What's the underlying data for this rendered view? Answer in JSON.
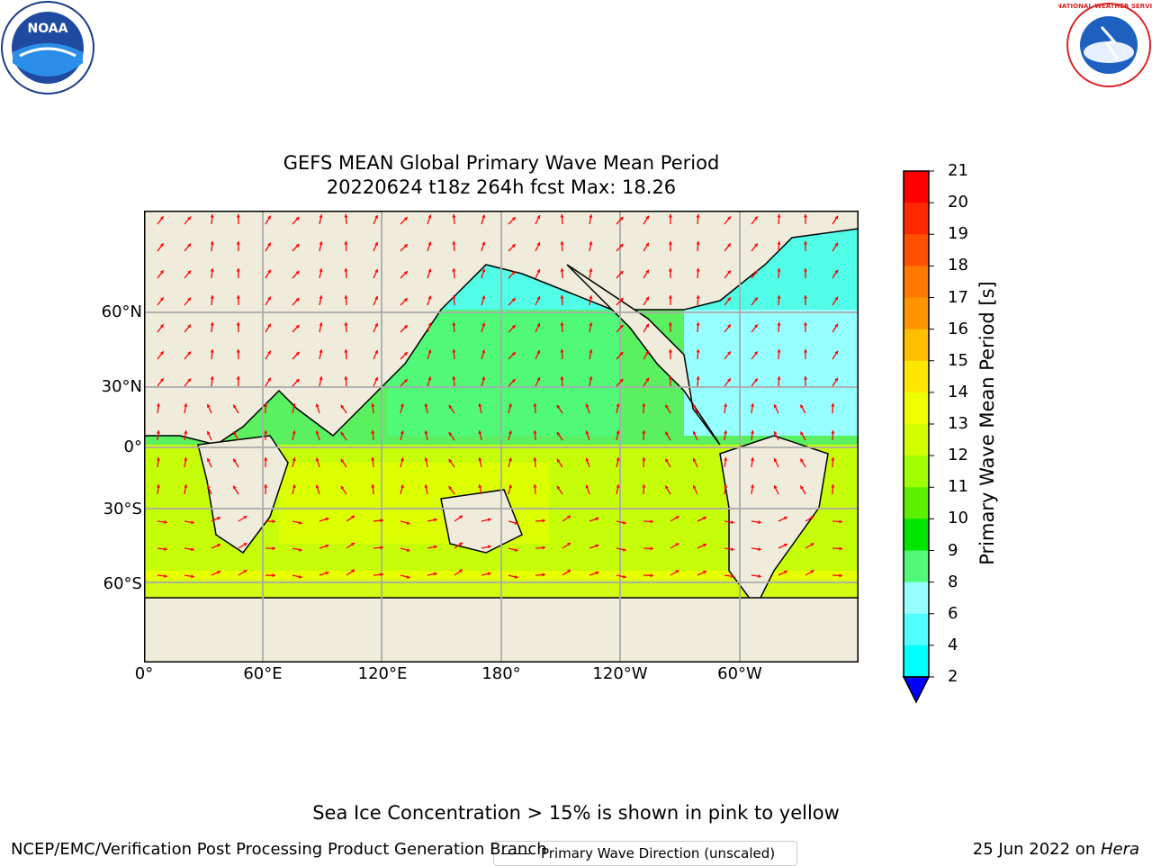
{
  "header": {
    "title_line1": "GEFS MEAN Global Primary Wave Mean Period",
    "title_line2": "20220624 t18z 264h fcst   Max: 18.26",
    "noaa_logo_text": "NOAA",
    "nws_logo_text": "NATIONAL WEATHER SERVICE"
  },
  "map": {
    "lat_labels": [
      "60°N",
      "30°N",
      "0°",
      "30°S",
      "60°S"
    ],
    "lon_labels": [
      "0°",
      "60°E",
      "120°E",
      "180°",
      "120°W",
      "60°W"
    ],
    "legend_label": "Primary Wave Direction (unscaled)",
    "land_color": "#efecdc",
    "arrow_color": "#ff0000"
  },
  "colorbar": {
    "label": "Primary Wave Mean Period [s]",
    "ticks": [
      "21",
      "20",
      "19",
      "18",
      "17",
      "16",
      "15",
      "14",
      "13",
      "12",
      "11",
      "10",
      "9",
      "8",
      "6",
      "4",
      "2"
    ],
    "colors": [
      "#ff0000",
      "#ff2800",
      "#ff5000",
      "#ff7800",
      "#ff9400",
      "#ffbe00",
      "#ffe600",
      "#f0ff00",
      "#d2ff00",
      "#a0ff00",
      "#5af000",
      "#00e600",
      "#50fa78",
      "#96ffff",
      "#50ffff",
      "#00ffff",
      "#00c8ff",
      "#0064ff",
      "#0000ff"
    ]
  },
  "footer": {
    "note": "Sea Ice Concentration > 15% is shown in pink to yellow",
    "left": "NCEP/EMC/Verification Post Processing Product Generation Branch",
    "right_date": "25 Jun 2022 on ",
    "right_host": "Hera"
  }
}
